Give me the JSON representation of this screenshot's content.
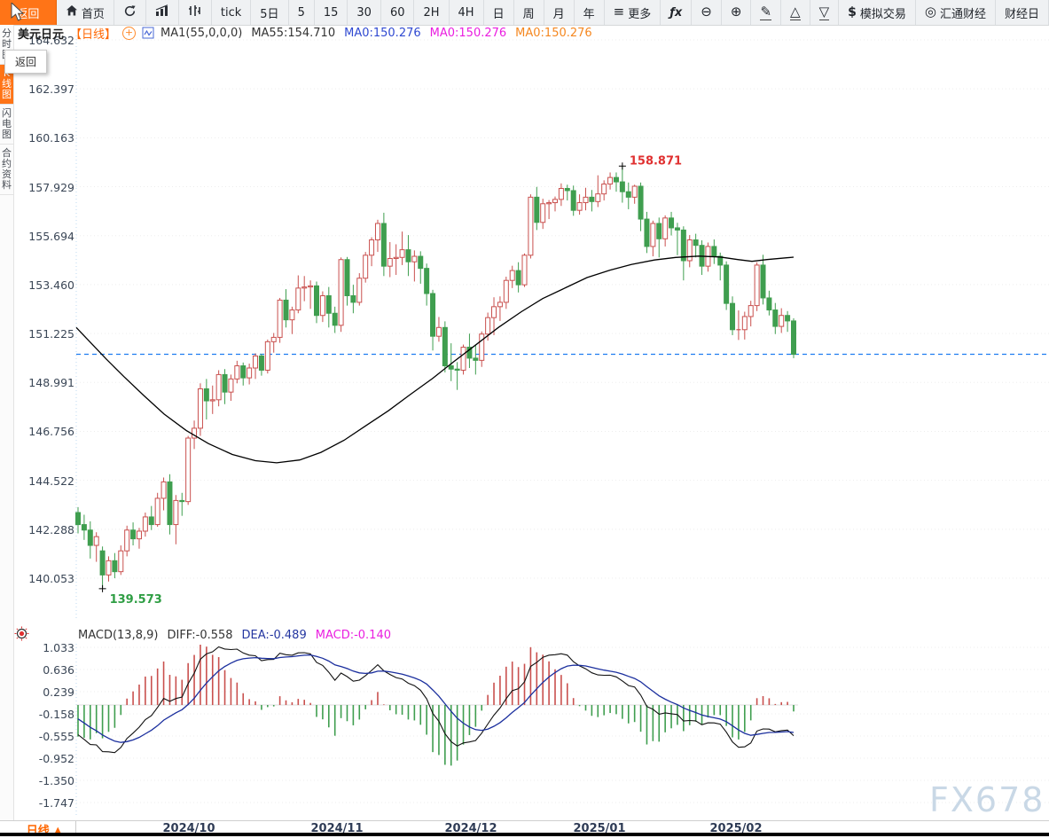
{
  "toolbar": {
    "back_label": "返回",
    "items": [
      {
        "label": "首页",
        "icon": "home"
      },
      {
        "icon": "refresh"
      },
      {
        "icon": "bar-chart"
      },
      {
        "icon": "volume-bars"
      },
      {
        "label": "tick"
      },
      {
        "label": "5日"
      },
      {
        "label": "5"
      },
      {
        "label": "15"
      },
      {
        "label": "30"
      },
      {
        "label": "60"
      },
      {
        "label": "2H"
      },
      {
        "label": "4H"
      },
      {
        "label": "日"
      },
      {
        "label": "周"
      },
      {
        "label": "月"
      },
      {
        "label": "年"
      },
      {
        "label": "更多",
        "icon": "menu"
      },
      {
        "icon": "fx"
      },
      {
        "icon": "zoom-out"
      },
      {
        "icon": "zoom-in"
      },
      {
        "icon": "pencil"
      },
      {
        "icon": "triangle-up"
      },
      {
        "icon": "triangle-down"
      },
      {
        "label": "模拟交易",
        "icon": "dollar"
      },
      {
        "label": "汇通财经",
        "icon": "huitong-logo"
      },
      {
        "label": "财经日"
      }
    ]
  },
  "tooltip": {
    "text": "返回"
  },
  "sidebar": {
    "tabs": [
      {
        "label": "分时图",
        "active": false
      },
      {
        "label": "K线图",
        "active": true
      },
      {
        "label": "闪电图",
        "active": false
      },
      {
        "label": "合约资料",
        "active": false
      }
    ]
  },
  "chart_header": {
    "symbol": "美元日元",
    "period_tag": "【日线】",
    "parts": [
      {
        "text": "MA1(55,0,0,0)",
        "color": "#333333"
      },
      {
        "text": "MA55:154.710",
        "color": "#333333"
      },
      {
        "text": "MA0:150.276",
        "color": "#2f49d1"
      },
      {
        "text": "MA0:150.276",
        "color": "#ea1ee0"
      },
      {
        "text": "MA0:150.276",
        "color": "#f5871f"
      }
    ]
  },
  "macd_header": {
    "parts": [
      {
        "text": "MACD(13,8,9)",
        "color": "#333333"
      },
      {
        "text": "DIFF:-0.558",
        "color": "#333333"
      },
      {
        "text": "DEA:-0.489",
        "color": "#2436a0"
      },
      {
        "text": "MACD:-0.140",
        "color": "#ea1ee0"
      }
    ]
  },
  "bottom_bar": {
    "period_label": "日线",
    "arrow": "▲"
  },
  "watermark": "FX678",
  "chart_data": [
    {
      "type": "candlestick",
      "title": "美元日元 日线 (USD/JPY daily)",
      "grid": "dotted-horizontal",
      "legend_position": "top-left",
      "y_ticks": [
        "164.632",
        "162.397",
        "160.163",
        "157.929",
        "155.694",
        "153.460",
        "151.225",
        "148.991",
        "146.756",
        "144.522",
        "142.288",
        "140.053"
      ],
      "ylim": [
        140.053,
        164.632
      ],
      "x_labels": [
        "2024/10",
        "2024/11",
        "2024/12",
        "2025/01",
        "2025/02"
      ],
      "last_price": 150.276,
      "annotations": {
        "high": "158.871",
        "low": "139.573"
      },
      "up_color": "#c9504e",
      "down_color": "#3f9e4f",
      "ma55_color": "#000000",
      "price_line_color": "#1e7df0",
      "ma55_last": 154.71,
      "ma55_line": [
        [
          86,
          151.5
        ],
        [
          100,
          150.9
        ],
        [
          120,
          150.05
        ],
        [
          140,
          149.25
        ],
        [
          162,
          148.4
        ],
        [
          185,
          147.55
        ],
        [
          210,
          146.8
        ],
        [
          235,
          146.2
        ],
        [
          262,
          145.7
        ],
        [
          288,
          145.42
        ],
        [
          312,
          145.32
        ],
        [
          338,
          145.45
        ],
        [
          362,
          145.8
        ],
        [
          388,
          146.35
        ],
        [
          412,
          147.0
        ],
        [
          438,
          147.7
        ],
        [
          462,
          148.42
        ],
        [
          488,
          149.18
        ],
        [
          512,
          149.95
        ],
        [
          538,
          150.75
        ],
        [
          562,
          151.5
        ],
        [
          588,
          152.22
        ],
        [
          612,
          152.82
        ],
        [
          638,
          153.32
        ],
        [
          662,
          153.78
        ],
        [
          688,
          154.12
        ],
        [
          712,
          154.38
        ],
        [
          738,
          154.58
        ],
        [
          762,
          154.7
        ],
        [
          788,
          154.76
        ],
        [
          812,
          154.72
        ],
        [
          832,
          154.6
        ],
        [
          848,
          154.52
        ],
        [
          865,
          154.6
        ],
        [
          895,
          154.71
        ]
      ],
      "candles": [
        [
          143.05,
          143.3,
          142.1,
          142.5
        ],
        [
          142.5,
          142.95,
          141.8,
          142.25
        ],
        [
          142.25,
          142.65,
          140.95,
          141.55
        ],
        [
          141.55,
          142.15,
          140.8,
          141.95
        ],
        [
          141.3,
          141.5,
          139.573,
          140.2
        ],
        [
          140.2,
          141.05,
          139.9,
          140.85
        ],
        [
          140.85,
          141.2,
          140.05,
          140.35
        ],
        [
          140.35,
          141.55,
          140.2,
          141.3
        ],
        [
          141.3,
          142.45,
          141.05,
          142.25
        ],
        [
          142.25,
          142.6,
          141.55,
          141.85
        ],
        [
          141.85,
          142.35,
          141.4,
          142.2
        ],
        [
          142.2,
          143.05,
          141.95,
          142.85
        ],
        [
          142.85,
          143.35,
          142.25,
          142.5
        ],
        [
          142.5,
          143.95,
          142.4,
          143.7
        ],
        [
          143.7,
          144.65,
          143.15,
          144.45
        ],
        [
          144.45,
          144.8,
          142.05,
          142.5
        ],
        [
          142.5,
          143.85,
          141.6,
          143.6
        ],
        [
          143.6,
          143.95,
          142.9,
          143.55
        ],
        [
          143.55,
          146.55,
          143.4,
          146.45
        ],
        [
          146.45,
          147.25,
          145.95,
          146.9
        ],
        [
          146.9,
          148.95,
          146.55,
          148.7
        ],
        [
          148.7,
          149.15,
          147.3,
          148.15
        ],
        [
          148.15,
          148.85,
          147.55,
          148.2
        ],
        [
          148.2,
          149.55,
          147.9,
          149.35
        ],
        [
          149.35,
          149.6,
          148.0,
          148.55
        ],
        [
          148.55,
          149.35,
          148.15,
          149.15
        ],
        [
          149.15,
          149.98,
          148.95,
          149.75
        ],
        [
          149.75,
          149.9,
          148.85,
          149.2
        ],
        [
          149.2,
          149.85,
          148.9,
          149.65
        ],
        [
          149.65,
          150.32,
          149.15,
          150.2
        ],
        [
          150.2,
          150.3,
          149.3,
          149.55
        ],
        [
          149.55,
          150.95,
          149.4,
          150.85
        ],
        [
          150.85,
          151.25,
          150.35,
          151.05
        ],
        [
          151.05,
          152.85,
          150.8,
          152.75
        ],
        [
          152.75,
          153.25,
          151.5,
          151.85
        ],
        [
          151.85,
          152.45,
          151.2,
          152.3
        ],
        [
          152.3,
          153.88,
          152.15,
          153.3
        ],
        [
          153.3,
          153.85,
          152.7,
          153.35
        ],
        [
          153.35,
          153.65,
          152.35,
          153.4
        ],
        [
          153.4,
          153.6,
          151.7,
          152.05
        ],
        [
          152.05,
          153.15,
          151.75,
          152.95
        ],
        [
          152.95,
          153.35,
          151.5,
          152.15
        ],
        [
          152.15,
          152.45,
          151.25,
          151.6
        ],
        [
          151.6,
          154.7,
          151.3,
          154.6
        ],
        [
          154.6,
          154.72,
          152.5,
          152.95
        ],
        [
          152.95,
          153.45,
          152.15,
          152.65
        ],
        [
          152.65,
          153.98,
          152.5,
          153.75
        ],
        [
          153.75,
          154.95,
          153.55,
          154.8
        ],
        [
          154.8,
          155.62,
          154.3,
          155.5
        ],
        [
          155.5,
          156.42,
          154.95,
          156.25
        ],
        [
          156.25,
          156.74,
          153.85,
          154.3
        ],
        [
          154.3,
          155.4,
          153.8,
          154.65
        ],
        [
          154.65,
          155.3,
          153.9,
          154.7
        ],
        [
          154.7,
          155.88,
          154.35,
          155.05
        ],
        [
          155.05,
          155.72,
          153.85,
          154.5
        ],
        [
          154.5,
          155.02,
          153.6,
          154.75
        ],
        [
          154.75,
          154.98,
          153.5,
          154.2
        ],
        [
          154.2,
          154.42,
          152.5,
          153.05
        ],
        [
          153.05,
          153.22,
          150.45,
          151.1
        ],
        [
          151.1,
          151.98,
          150.85,
          151.5
        ],
        [
          151.5,
          151.78,
          149.45,
          149.75
        ],
        [
          149.75,
          150.78,
          149.05,
          149.6
        ],
        [
          149.6,
          149.92,
          148.65,
          149.55
        ],
        [
          149.55,
          150.72,
          149.35,
          150.6
        ],
        [
          150.6,
          151.22,
          149.65,
          150.1
        ],
        [
          150.1,
          150.72,
          149.35,
          150.0
        ],
        [
          150.0,
          151.32,
          149.7,
          151.2
        ],
        [
          151.2,
          152.18,
          150.9,
          151.95
        ],
        [
          151.95,
          152.88,
          151.15,
          152.45
        ],
        [
          152.45,
          152.92,
          151.8,
          152.65
        ],
        [
          152.65,
          153.82,
          152.35,
          153.65
        ],
        [
          153.65,
          154.32,
          153.3,
          154.1
        ],
        [
          154.1,
          154.48,
          153.1,
          153.45
        ],
        [
          153.45,
          154.88,
          153.35,
          154.8
        ],
        [
          154.8,
          157.58,
          154.65,
          157.45
        ],
        [
          157.45,
          157.92,
          155.95,
          156.3
        ],
        [
          156.3,
          157.38,
          156.0,
          157.15
        ],
        [
          157.15,
          157.32,
          156.45,
          157.2
        ],
        [
          157.2,
          157.48,
          156.8,
          157.35
        ],
        [
          157.35,
          158.08,
          157.05,
          157.85
        ],
        [
          157.85,
          158.02,
          157.3,
          157.75
        ],
        [
          157.75,
          157.98,
          156.6,
          156.85
        ],
        [
          156.85,
          157.58,
          156.65,
          157.2
        ],
        [
          157.2,
          157.88,
          156.85,
          157.45
        ],
        [
          157.45,
          157.78,
          156.8,
          157.25
        ],
        [
          157.25,
          158.45,
          157.0,
          157.6
        ],
        [
          157.6,
          158.22,
          157.3,
          158.05
        ],
        [
          158.05,
          158.58,
          157.8,
          158.35
        ],
        [
          158.35,
          158.58,
          157.7,
          158.15
        ],
        [
          158.15,
          158.871,
          157.2,
          157.7
        ],
        [
          157.7,
          158.12,
          156.9,
          157.45
        ],
        [
          157.45,
          158.02,
          157.15,
          157.95
        ],
        [
          157.95,
          158.12,
          155.9,
          156.45
        ],
        [
          156.45,
          156.78,
          154.9,
          155.2
        ],
        [
          155.2,
          156.38,
          154.75,
          156.25
        ],
        [
          156.25,
          156.52,
          154.7,
          155.55
        ],
        [
          155.55,
          156.62,
          155.2,
          156.5
        ],
        [
          156.5,
          156.78,
          155.7,
          156.05
        ],
        [
          156.05,
          156.28,
          154.8,
          155.95
        ],
        [
          155.95,
          156.12,
          153.65,
          154.55
        ],
        [
          154.55,
          155.72,
          154.25,
          155.5
        ],
        [
          155.5,
          155.78,
          154.7,
          155.25
        ],
        [
          155.25,
          155.48,
          153.9,
          154.3
        ],
        [
          154.3,
          155.38,
          154.05,
          155.2
        ],
        [
          155.2,
          155.52,
          154.4,
          154.75
        ],
        [
          154.75,
          154.92,
          153.65,
          154.35
        ],
        [
          154.35,
          154.52,
          152.3,
          152.6
        ],
        [
          152.6,
          152.92,
          151.15,
          151.4
        ],
        [
          151.4,
          152.28,
          150.93,
          151.4
        ],
        [
          151.4,
          152.22,
          150.95,
          152.0
        ],
        [
          152.0,
          152.72,
          151.55,
          152.5
        ],
        [
          152.5,
          154.48,
          152.25,
          154.35
        ],
        [
          154.35,
          154.82,
          152.55,
          152.85
        ],
        [
          152.85,
          153.18,
          152.05,
          152.3
        ],
        [
          152.3,
          152.62,
          151.2,
          151.55
        ],
        [
          151.55,
          152.38,
          151.25,
          152.05
        ],
        [
          152.05,
          152.25,
          151.3,
          151.8
        ],
        [
          151.8,
          151.92,
          150.1,
          150.276
        ]
      ]
    },
    {
      "type": "bar",
      "title": "MACD(13,8,9)",
      "diff": -0.558,
      "dea": -0.489,
      "macd": -0.14,
      "y_ticks": [
        "1.033",
        "0.636",
        "0.239",
        "-0.158",
        "-0.555",
        "-0.952",
        "-1.350",
        "-1.747"
      ],
      "ylim": [
        -1.747,
        1.033
      ],
      "colors": {
        "diff": "#111111",
        "dea": "#1b2f9e",
        "pos": "#c9504e",
        "neg": "#3f9e4f"
      }
    }
  ]
}
